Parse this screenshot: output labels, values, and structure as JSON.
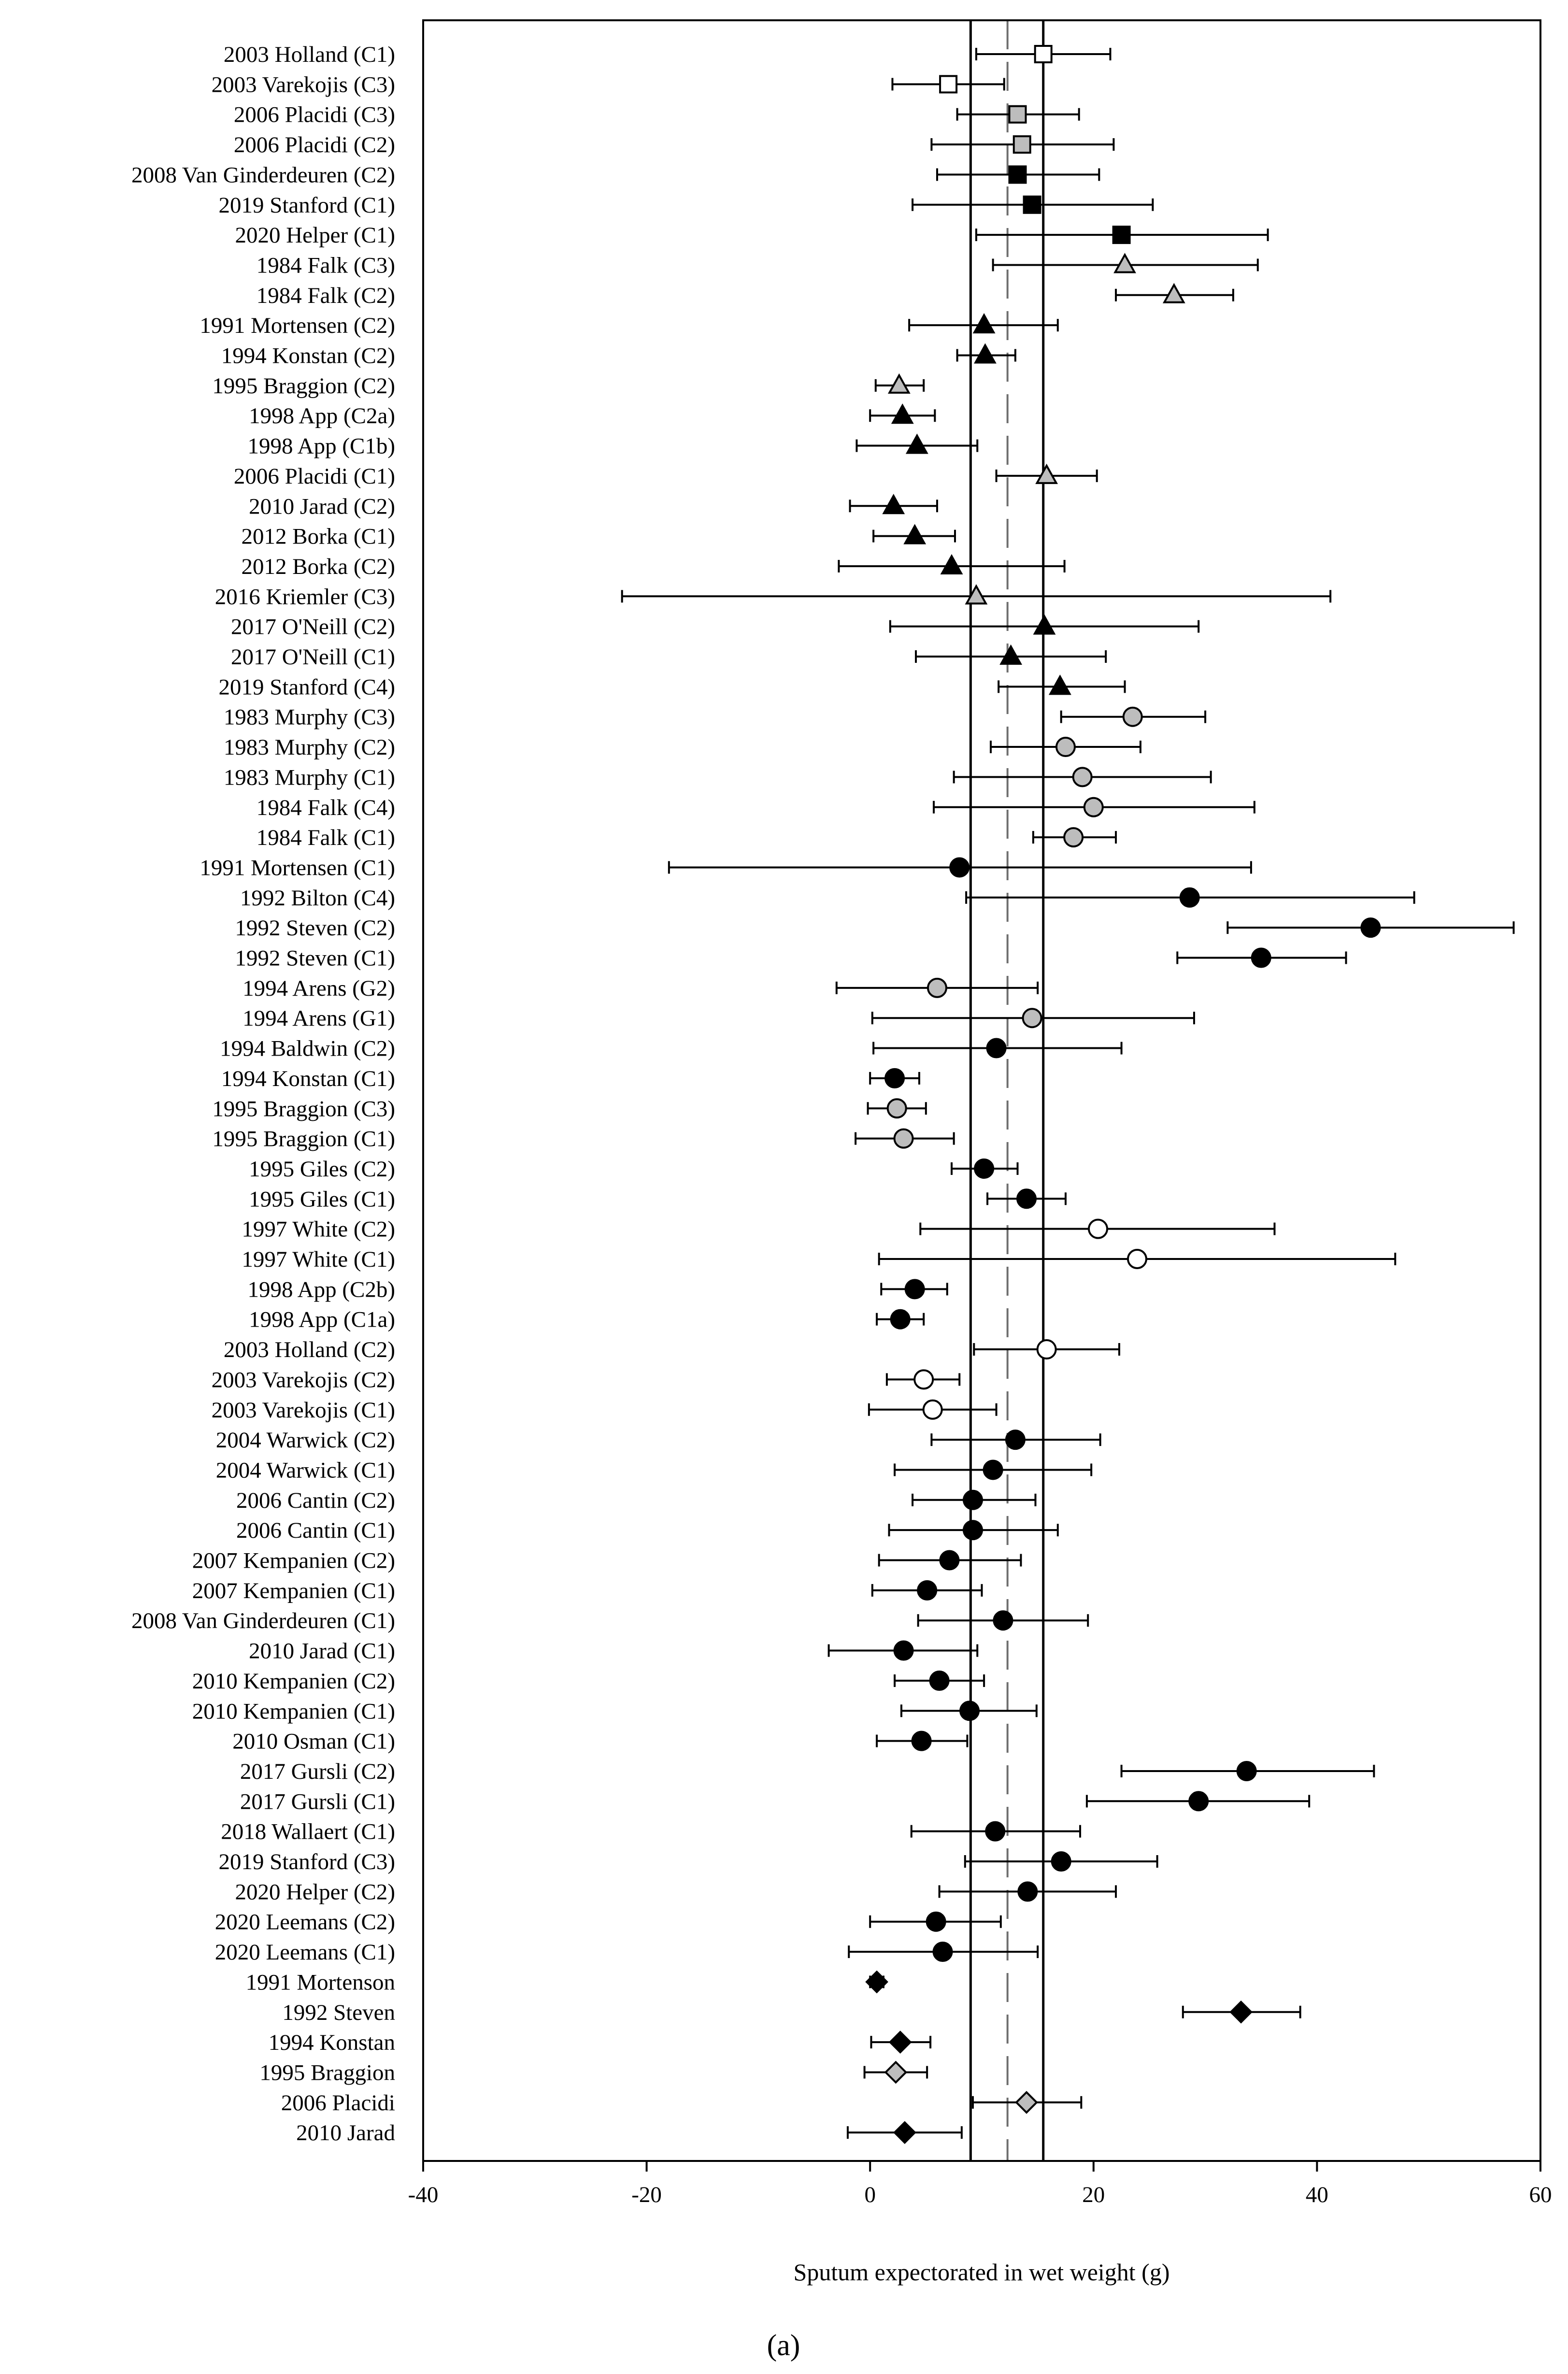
{
  "chart_data": {
    "type": "scatter",
    "subtype": "forest-plot",
    "title": "",
    "xlabel": "Sputum expectorated in wet weight (g)",
    "ylabel": "",
    "panel_label": "(a)",
    "xlim": [
      -40,
      60
    ],
    "xticks": [
      "-40",
      "-20",
      "0",
      "20",
      "40",
      "60"
    ],
    "reference_lines": {
      "solid": [
        9,
        15.5
      ],
      "dashed": [
        12.3
      ]
    },
    "colors": {
      "black": "#000000",
      "gray": "#bdbdbd",
      "white": "#ffffff"
    },
    "studies": [
      {
        "label": "2003 Holland (C1)",
        "value": 15.5,
        "low": 9.5,
        "high": 21.5,
        "marker": "square",
        "fill": "white"
      },
      {
        "label": "2003 Varekojis (C3)",
        "value": 7.0,
        "low": 2.0,
        "high": 12.0,
        "marker": "square",
        "fill": "white"
      },
      {
        "label": "2006 Placidi (C3)",
        "value": 13.2,
        "low": 7.8,
        "high": 18.7,
        "marker": "square",
        "fill": "gray"
      },
      {
        "label": "2006 Placidi (C2)",
        "value": 13.6,
        "low": 5.5,
        "high": 21.8,
        "marker": "square",
        "fill": "gray"
      },
      {
        "label": "2008 Van Ginderdeuren (C2)",
        "value": 13.2,
        "low": 6.0,
        "high": 20.5,
        "marker": "square",
        "fill": "black"
      },
      {
        "label": "2019 Stanford (C1)",
        "value": 14.5,
        "low": 3.8,
        "high": 25.3,
        "marker": "square",
        "fill": "black"
      },
      {
        "label": "2020 Helper (C1)",
        "value": 22.5,
        "low": 9.5,
        "high": 35.6,
        "marker": "square",
        "fill": "black"
      },
      {
        "label": "1984 Falk (C3)",
        "value": 22.8,
        "low": 11.0,
        "high": 34.7,
        "marker": "triangle",
        "fill": "gray"
      },
      {
        "label": "1984 Falk (C2)",
        "value": 27.2,
        "low": 22.0,
        "high": 32.5,
        "marker": "triangle",
        "fill": "gray"
      },
      {
        "label": "1991 Mortensen (C2)",
        "value": 10.2,
        "low": 3.5,
        "high": 16.8,
        "marker": "triangle",
        "fill": "black"
      },
      {
        "label": "1994 Konstan (C2)",
        "value": 10.3,
        "low": 7.8,
        "high": 13.0,
        "marker": "triangle",
        "fill": "black"
      },
      {
        "label": "1995 Braggion (C2)",
        "value": 2.6,
        "low": 0.5,
        "high": 4.8,
        "marker": "triangle",
        "fill": "gray"
      },
      {
        "label": "1998 App (C2a)",
        "value": 2.9,
        "low": 0.0,
        "high": 5.8,
        "marker": "triangle",
        "fill": "black"
      },
      {
        "label": "1998 App (C1b)",
        "value": 4.2,
        "low": -1.2,
        "high": 9.6,
        "marker": "triangle",
        "fill": "black"
      },
      {
        "label": "2006 Placidi (C1)",
        "value": 15.8,
        "low": 11.3,
        "high": 20.3,
        "marker": "triangle",
        "fill": "gray"
      },
      {
        "label": "2010 Jarad (C2)",
        "value": 2.1,
        "low": -1.8,
        "high": 6.0,
        "marker": "triangle",
        "fill": "black"
      },
      {
        "label": "2012 Borka (C1)",
        "value": 4.0,
        "low": 0.3,
        "high": 7.6,
        "marker": "triangle",
        "fill": "black"
      },
      {
        "label": "2012 Borka (C2)",
        "value": 7.3,
        "low": -2.8,
        "high": 17.4,
        "marker": "triangle",
        "fill": "black"
      },
      {
        "label": "2016 Kriemler (C3)",
        "value": 9.5,
        "low": -22.2,
        "high": 41.2,
        "marker": "triangle",
        "fill": "gray"
      },
      {
        "label": "2017 O'Neill (C2)",
        "value": 15.6,
        "low": 1.8,
        "high": 29.4,
        "marker": "triangle",
        "fill": "black"
      },
      {
        "label": "2017 O'Neill (C1)",
        "value": 12.6,
        "low": 4.1,
        "high": 21.1,
        "marker": "triangle",
        "fill": "black"
      },
      {
        "label": "2019 Stanford (C4)",
        "value": 17.0,
        "low": 11.5,
        "high": 22.8,
        "marker": "triangle",
        "fill": "black"
      },
      {
        "label": "1983 Murphy (C3)",
        "value": 23.5,
        "low": 17.1,
        "high": 30.0,
        "marker": "circle",
        "fill": "gray"
      },
      {
        "label": "1983 Murphy (C2)",
        "value": 17.5,
        "low": 10.8,
        "high": 24.2,
        "marker": "circle",
        "fill": "gray"
      },
      {
        "label": "1983 Murphy (C1)",
        "value": 19.0,
        "low": 7.5,
        "high": 30.5,
        "marker": "circle",
        "fill": "gray"
      },
      {
        "label": "1984 Falk (C4)",
        "value": 20.0,
        "low": 5.7,
        "high": 34.4,
        "marker": "circle",
        "fill": "gray"
      },
      {
        "label": "1984 Falk (C1)",
        "value": 18.2,
        "low": 14.6,
        "high": 22.0,
        "marker": "circle",
        "fill": "gray"
      },
      {
        "label": "1991 Mortensen (C1)",
        "value": 8.0,
        "low": -18.0,
        "high": 34.1,
        "marker": "circle",
        "fill": "black"
      },
      {
        "label": "1992 Bilton (C4)",
        "value": 28.6,
        "low": 8.6,
        "high": 48.7,
        "marker": "circle",
        "fill": "black"
      },
      {
        "label": "1992 Steven (C2)",
        "value": 44.8,
        "low": 32.0,
        "high": 57.6,
        "marker": "circle",
        "fill": "black"
      },
      {
        "label": "1992 Steven (C1)",
        "value": 35.0,
        "low": 27.5,
        "high": 42.6,
        "marker": "circle",
        "fill": "black"
      },
      {
        "label": "1994 Arens (G2)",
        "value": 6.0,
        "low": -3.0,
        "high": 15.0,
        "marker": "circle",
        "fill": "gray"
      },
      {
        "label": "1994 Arens (G1)",
        "value": 14.5,
        "low": 0.2,
        "high": 29.0,
        "marker": "circle",
        "fill": "gray"
      },
      {
        "label": "1994 Baldwin (C2)",
        "value": 11.3,
        "low": 0.3,
        "high": 22.5,
        "marker": "circle",
        "fill": "black"
      },
      {
        "label": "1994 Konstan (C1)",
        "value": 2.2,
        "low": 0.0,
        "high": 4.4,
        "marker": "circle",
        "fill": "black"
      },
      {
        "label": "1995 Braggion (C3)",
        "value": 2.4,
        "low": -0.2,
        "high": 5.0,
        "marker": "circle",
        "fill": "gray"
      },
      {
        "label": "1995 Braggion (C1)",
        "value": 3.0,
        "low": -1.3,
        "high": 7.5,
        "marker": "circle",
        "fill": "gray"
      },
      {
        "label": "1995 Giles (C2)",
        "value": 10.2,
        "low": 7.3,
        "high": 13.2,
        "marker": "circle",
        "fill": "black"
      },
      {
        "label": "1995 Giles (C1)",
        "value": 14.0,
        "low": 10.5,
        "high": 17.5,
        "marker": "circle",
        "fill": "black"
      },
      {
        "label": "1997 White (C2)",
        "value": 20.4,
        "low": 4.5,
        "high": 36.2,
        "marker": "circle",
        "fill": "white"
      },
      {
        "label": "1997 White (C1)",
        "value": 23.9,
        "low": 0.8,
        "high": 47.0,
        "marker": "circle",
        "fill": "white"
      },
      {
        "label": "1998 App (C2b)",
        "value": 4.0,
        "low": 1.0,
        "high": 6.9,
        "marker": "circle",
        "fill": "black"
      },
      {
        "label": "1998 App (C1a)",
        "value": 2.7,
        "low": 0.6,
        "high": 4.8,
        "marker": "circle",
        "fill": "black"
      },
      {
        "label": "2003 Holland (C2)",
        "value": 15.8,
        "low": 9.3,
        "high": 22.3,
        "marker": "circle",
        "fill": "white"
      },
      {
        "label": "2003 Varekojis (C2)",
        "value": 4.8,
        "low": 1.5,
        "high": 8.0,
        "marker": "circle",
        "fill": "white"
      },
      {
        "label": "2003 Varekojis (C1)",
        "value": 5.6,
        "low": -0.1,
        "high": 11.3,
        "marker": "circle",
        "fill": "white"
      },
      {
        "label": "2004 Warwick (C2)",
        "value": 13.0,
        "low": 5.5,
        "high": 20.6,
        "marker": "circle",
        "fill": "black"
      },
      {
        "label": "2004 Warwick (C1)",
        "value": 11.0,
        "low": 2.2,
        "high": 19.8,
        "marker": "circle",
        "fill": "black"
      },
      {
        "label": "2006 Cantin (C2)",
        "value": 9.2,
        "low": 3.8,
        "high": 14.8,
        "marker": "circle",
        "fill": "black"
      },
      {
        "label": "2006 Cantin (C1)",
        "value": 9.2,
        "low": 1.7,
        "high": 16.8,
        "marker": "circle",
        "fill": "black"
      },
      {
        "label": "2007 Kempanien (C2)",
        "value": 7.1,
        "low": 0.8,
        "high": 13.5,
        "marker": "circle",
        "fill": "black"
      },
      {
        "label": "2007 Kempanien (C1)",
        "value": 5.1,
        "low": 0.2,
        "high": 10.0,
        "marker": "circle",
        "fill": "black"
      },
      {
        "label": "2008 Van Ginderdeuren (C1)",
        "value": 11.9,
        "low": 4.3,
        "high": 19.5,
        "marker": "circle",
        "fill": "black"
      },
      {
        "label": "2010 Jarad (C1)",
        "value": 3.0,
        "low": -3.7,
        "high": 9.6,
        "marker": "circle",
        "fill": "black"
      },
      {
        "label": "2010 Kempanien (C2)",
        "value": 6.2,
        "low": 2.2,
        "high": 10.2,
        "marker": "circle",
        "fill": "black"
      },
      {
        "label": "2010 Kempanien (C1)",
        "value": 8.9,
        "low": 2.8,
        "high": 14.9,
        "marker": "circle",
        "fill": "black"
      },
      {
        "label": "2010 Osman (C1)",
        "value": 4.6,
        "low": 0.6,
        "high": 8.7,
        "marker": "circle",
        "fill": "black"
      },
      {
        "label": "2017 Gursli (C2)",
        "value": 33.7,
        "low": 22.5,
        "high": 45.1,
        "marker": "circle",
        "fill": "black"
      },
      {
        "label": "2017 Gursli (C1)",
        "value": 29.4,
        "low": 19.4,
        "high": 39.3,
        "marker": "circle",
        "fill": "black"
      },
      {
        "label": "2018 Wallaert (C1)",
        "value": 11.2,
        "low": 3.7,
        "high": 18.8,
        "marker": "circle",
        "fill": "black"
      },
      {
        "label": "2019 Stanford (C3)",
        "value": 17.1,
        "low": 8.5,
        "high": 25.7,
        "marker": "circle",
        "fill": "black"
      },
      {
        "label": "2020 Helper (C2)",
        "value": 14.1,
        "low": 6.2,
        "high": 22.0,
        "marker": "circle",
        "fill": "black"
      },
      {
        "label": "2020 Leemans (C2)",
        "value": 5.9,
        "low": 0.0,
        "high": 11.7,
        "marker": "circle",
        "fill": "black"
      },
      {
        "label": "2020 Leemans (C1)",
        "value": 6.5,
        "low": -1.9,
        "high": 15.0,
        "marker": "circle",
        "fill": "black"
      },
      {
        "label": "1991 Mortenson",
        "value": 0.6,
        "low": 0.0,
        "high": 1.2,
        "marker": "diamond",
        "fill": "black"
      },
      {
        "label": "1992 Steven",
        "value": 33.2,
        "low": 28.0,
        "high": 38.5,
        "marker": "diamond",
        "fill": "black"
      },
      {
        "label": "1994 Konstan",
        "value": 2.7,
        "low": 0.1,
        "high": 5.4,
        "marker": "diamond",
        "fill": "black"
      },
      {
        "label": "1995 Braggion",
        "value": 2.3,
        "low": -0.5,
        "high": 5.1,
        "marker": "diamond",
        "fill": "gray"
      },
      {
        "label": "2006 Placidi",
        "value": 14.0,
        "low": 9.2,
        "high": 18.9,
        "marker": "diamond",
        "fill": "gray"
      },
      {
        "label": "2010 Jarad",
        "value": 3.1,
        "low": -2.0,
        "high": 8.2,
        "marker": "diamond",
        "fill": "black"
      }
    ]
  }
}
